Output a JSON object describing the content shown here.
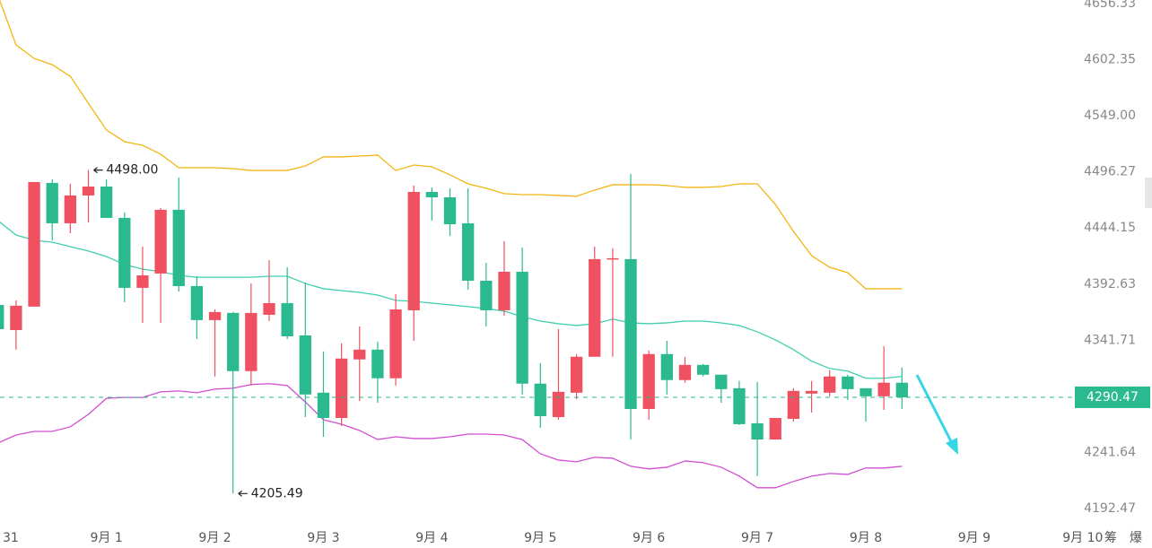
{
  "chart_data": {
    "type": "candlestick",
    "log": true,
    "xlim": [
      -0.888,
      62.83
    ],
    "ylim": [
      4178.4,
      4659.8
    ],
    "yticks": [
      4192.47,
      4241.64,
      4341.71,
      4392.63,
      4444.15,
      4496.27,
      {
        "value": 4549,
        "label": "4549.00"
      },
      4602.35,
      4656.33
    ],
    "xticks": [
      {
        "value": -1,
        "label": "31"
      },
      {
        "value": 5,
        "label": "9月 1"
      },
      {
        "value": 11,
        "label": "9月 2"
      },
      {
        "value": 17,
        "label": "9月 3"
      },
      {
        "value": 23,
        "label": "9月 4"
      },
      {
        "value": 29,
        "label": "9月 5"
      },
      {
        "value": 35,
        "label": "9月 6"
      },
      {
        "value": 41,
        "label": "9月 7"
      },
      {
        "value": 47,
        "label": "9月 8"
      },
      {
        "value": 53,
        "label": "9月 9"
      },
      {
        "value": 59,
        "label": "9月 10"
      }
    ],
    "up_color": "#ef5160",
    "down_color": "#2bb98f",
    "x": [
      -1,
      0,
      1,
      2,
      3,
      4,
      5,
      6,
      7,
      8,
      9,
      10,
      11,
      12,
      13,
      14,
      15,
      16,
      17,
      18,
      19,
      20,
      21,
      22,
      23,
      24,
      25,
      26,
      27,
      28,
      29,
      30,
      31,
      32,
      33,
      34,
      35,
      36,
      37,
      38,
      39,
      40,
      41,
      42,
      43,
      44,
      45,
      46,
      47,
      48,
      49
    ],
    "open": [
      4373.7,
      4350.9,
      4372.1,
      4486.0,
      4448.5,
      4474.3,
      4482.6,
      4453.5,
      4389.2,
      4402.3,
      4461.0,
      4390.8,
      4359.9,
      4366.4,
      4313.9,
      4364.7,
      4375.3,
      4346.0,
      4294.6,
      4272.1,
      4324.4,
      4333.2,
      4307.5,
      4368.8,
      4477.6,
      4472.6,
      4448.5,
      4395.7,
      4368.8,
      4403.9,
      4302.7,
      4272.9,
      4294.6,
      4326.8,
      4415.5,
      4415.5,
      4280.1,
      4329.2,
      4305.9,
      4319.5,
      4310.7,
      4298.6,
      4267.4,
      4253.0,
      4271.3,
      4293.8,
      4294.6,
      4309.1,
      4298.6,
      4291.4,
      4303.5
    ],
    "high": [
      4377.8,
      4377.8,
      4486.8,
      4489.3,
      4485.1,
      4498,
      4489.3,
      4458.5,
      4427.0,
      4462.6,
      4491.0,
      4399.8,
      4369.6,
      4367.2,
      4393.2,
      4414.6,
      4408.0,
      4394.0,
      4331.6,
      4338.8,
      4354.2,
      4340.4,
      4383.5,
      4483.5,
      4481.8,
      4481.0,
      4481.0,
      4412.2,
      4431.9,
      4426.2,
      4321.1,
      4351.7,
      4329.2,
      4427.0,
      4425.4,
      4494.2,
      4332.4,
      4341.2,
      4326.8,
      4320.3,
      4310.7,
      4305.1,
      4304.3,
      4272.1,
      4298.6,
      4305.1,
      4314.7,
      4310.7,
      4298.6,
      4336.4,
      4317.1
    ],
    "low": [
      4351.7,
      4333.2,
      4372.1,
      4432.8,
      4439.4,
      4449.3,
      4453.5,
      4376.1,
      4357.4,
      4357.4,
      4385.9,
      4342.8,
      4309.1,
      4205.49,
      4301.0,
      4359.0,
      4342.8,
      4272.9,
      4255.4,
      4265.0,
      4287.2,
      4285.6,
      4301.0,
      4341.2,
      4451.0,
      4436.9,
      4387.5,
      4354.2,
      4363.9,
      4293.0,
      4263.4,
      4270.5,
      4288.8,
      4326.8,
      4326.8,
      4253.0,
      4270.5,
      4293.0,
      4303.5,
      4309.1,
      4285.6,
      4265.8,
      4220.8,
      4253.0,
      4268.9,
      4276.9,
      4291.4,
      4288.0,
      4268.9,
      4279.3,
      4280.1
    ],
    "close": [
      4351.7,
      4372.9,
      4486.8,
      4448.5,
      4474.3,
      4482.6,
      4453.5,
      4389.2,
      4400.6,
      4461.0,
      4390.8,
      4359.9,
      4367.2,
      4313.9,
      4366.4,
      4375.3,
      4345.2,
      4293.0,
      4272.1,
      4325.2,
      4333.2,
      4307.5,
      4369.6,
      4477.6,
      4472.6,
      4447.6,
      4395.7,
      4368.8,
      4403.9,
      4302.7,
      4273.7,
      4295.4,
      4326.8,
      4415.5,
      4416.3,
      4280.1,
      4329.2,
      4305.9,
      4319.5,
      4310.7,
      4297.8,
      4266.6,
      4253.0,
      4272.1,
      4296.2,
      4296.2,
      4309.1,
      4297.8,
      4291.4,
      4303.5,
      4290.47
    ],
    "overlays": [
      {
        "color": "#f2b512",
        "values": [
          4664.0,
          4616.6,
          4603.6,
          4597.6,
          4586.5,
          4560.9,
          4535.6,
          4524.6,
          4521.2,
          4512.8,
          4500.2,
          4500.2,
          4500.2,
          4499.3,
          4497.6,
          4497.6,
          4497.6,
          4501.8,
          4510.3,
          4510.3,
          4511.1,
          4512.0,
          4497.6,
          4502.7,
          4501.0,
          4493.5,
          4485.1,
          4481.0,
          4476.0,
          4475.1,
          4475.1,
          4474.3,
          4473.5,
          4479.3,
          4484.3,
          4484.3,
          4484.3,
          4483.5,
          4481.8,
          4481.8,
          4482.6,
          4485.1,
          4485.1,
          4466.0,
          4441.0,
          4418.7,
          4408.0,
          4403.1,
          4388.4,
          4388.4,
          4388.4
        ]
      },
      {
        "color": "#3fcfae",
        "values": [
          4451.0,
          4437.7,
          4432.8,
          4431.1,
          4427.0,
          4422.9,
          4417.9,
          4410.5,
          4406.4,
          4403.9,
          4400.6,
          4398.9,
          4398.9,
          4398.9,
          4398.9,
          4399.8,
          4399.8,
          4393.2,
          4388.4,
          4386.7,
          4385.1,
          4382.6,
          4377.8,
          4376.9,
          4375.3,
          4373.7,
          4372.1,
          4370.4,
          4368.0,
          4363.1,
          4359.0,
          4356.6,
          4355.0,
          4356.6,
          4360.7,
          4357.4,
          4356.6,
          4357.4,
          4359.0,
          4359.0,
          4357.4,
          4355.0,
          4349.3,
          4342.0,
          4333.2,
          4322.8,
          4316.3,
          4313.9,
          4307.5,
          4307.5,
          4309.1
        ]
      },
      {
        "color": "#d04fd0",
        "values": [
          4249.9,
          4257.0,
          4260.2,
          4260.2,
          4264.2,
          4275.3,
          4289.6,
          4290.4,
          4290.4,
          4295.4,
          4296.2,
          4294.6,
          4297.8,
          4298.6,
          4301.9,
          4302.7,
          4301.0,
          4286.4,
          4270.5,
          4266.6,
          4261.0,
          4253.0,
          4255.4,
          4253.9,
          4253.9,
          4255.4,
          4257.8,
          4257.8,
          4257.0,
          4253.0,
          4240.4,
          4234.9,
          4233.4,
          4237.3,
          4236.5,
          4229.4,
          4227.1,
          4228.6,
          4234.1,
          4232.6,
          4228.6,
          4220.8,
          4210.6,
          4210.6,
          4216.1,
          4220.8,
          4223.1,
          4222.3,
          4227.9,
          4227.9,
          4229.4
        ]
      }
    ],
    "extremes": [
      {
        "x": 4,
        "value": 4498,
        "label": "4498.00"
      },
      {
        "x": 12,
        "value": 4205.49,
        "label": "4205.49"
      }
    ],
    "last_price": 4290.47
  },
  "toolbar": [
    "筹",
    "爆"
  ]
}
